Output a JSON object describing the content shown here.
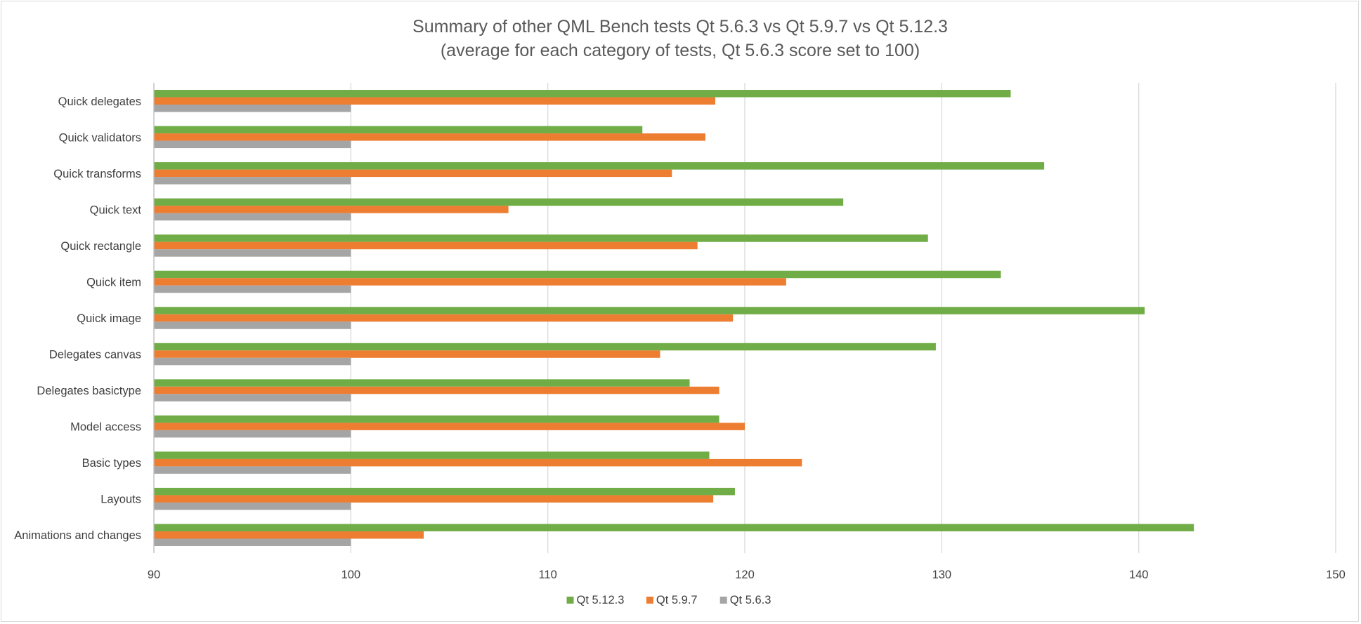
{
  "chart_data": {
    "type": "bar",
    "orientation": "horizontal",
    "title": "Summary of other QML Bench tests Qt 5.6.3 vs Qt 5.9.7 vs Qt 5.12.3",
    "subtitle": "(average for each category of tests, Qt 5.6.3 score set to 100)",
    "categories": [
      "Quick delegates",
      "Quick validators",
      "Quick transforms",
      "Quick text",
      "Quick rectangle",
      "Quick item",
      "Quick image",
      "Delegates canvas",
      "Delegates basictype",
      "Model access",
      "Basic types",
      "Layouts",
      "Animations and changes"
    ],
    "series": [
      {
        "name": "Qt 5.12.3",
        "color": "#70ad47",
        "values": [
          133.5,
          114.8,
          135.2,
          125.0,
          129.3,
          133.0,
          140.3,
          129.7,
          117.2,
          118.7,
          118.2,
          119.5,
          142.8
        ]
      },
      {
        "name": "Qt 5.9.7",
        "color": "#ed7d31",
        "values": [
          118.5,
          118.0,
          116.3,
          108.0,
          117.6,
          122.1,
          119.4,
          115.7,
          118.7,
          120.0,
          122.9,
          118.4,
          103.7
        ]
      },
      {
        "name": "Qt 5.6.3",
        "color": "#a5a5a5",
        "values": [
          100,
          100,
          100,
          100,
          100,
          100,
          100,
          100,
          100,
          100,
          100,
          100,
          100
        ]
      }
    ],
    "xlim": [
      90,
      150
    ],
    "xticks": [
      "90",
      "100",
      "110",
      "120",
      "130",
      "140",
      "150"
    ],
    "grid": true,
    "legend_position": "bottom"
  }
}
